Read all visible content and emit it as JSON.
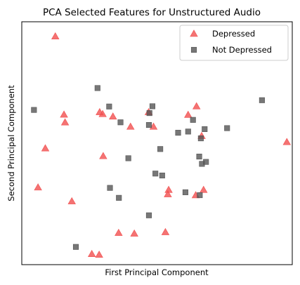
{
  "chart_data": {
    "type": "scatter",
    "title": "PCA Selected Features for Unstructured Audio",
    "xlabel": "First Principal Component",
    "ylabel": "Second Principal Component",
    "xlim": [
      0,
      100
    ],
    "ylim": [
      0,
      100
    ],
    "ticks_visible": false,
    "grid": false,
    "legend_position": "top-right",
    "series": [
      {
        "name": "Depressed",
        "marker": "triangle",
        "color": "#f15050",
        "points": [
          [
            12.4,
            94.0
          ],
          [
            15.6,
            61.8
          ],
          [
            16.0,
            58.6
          ],
          [
            8.7,
            47.9
          ],
          [
            6.0,
            31.8
          ],
          [
            18.5,
            26.1
          ],
          [
            28.8,
            62.8
          ],
          [
            29.9,
            62.0
          ],
          [
            30.1,
            44.7
          ],
          [
            33.7,
            61.0
          ],
          [
            40.2,
            56.8
          ],
          [
            35.8,
            13.1
          ],
          [
            41.6,
            12.8
          ],
          [
            25.9,
            4.4
          ],
          [
            28.6,
            4.1
          ],
          [
            46.9,
            62.8
          ],
          [
            48.7,
            56.8
          ],
          [
            53.1,
            13.4
          ],
          [
            54.3,
            30.8
          ],
          [
            54.0,
            29.0
          ],
          [
            61.5,
            61.7
          ],
          [
            64.6,
            65.2
          ],
          [
            66.5,
            53.0
          ],
          [
            64.3,
            28.6
          ],
          [
            67.2,
            30.8
          ],
          [
            98.0,
            50.5
          ]
        ]
      },
      {
        "name": "Not Depressed",
        "marker": "square",
        "color": "#555555",
        "points": [
          [
            4.5,
            63.7
          ],
          [
            28.0,
            72.7
          ],
          [
            32.3,
            65.1
          ],
          [
            36.5,
            58.6
          ],
          [
            39.4,
            43.8
          ],
          [
            32.6,
            31.6
          ],
          [
            35.9,
            27.5
          ],
          [
            20.0,
            7.3
          ],
          [
            47.0,
            57.5
          ],
          [
            47.2,
            62.4
          ],
          [
            48.3,
            65.2
          ],
          [
            49.4,
            37.5
          ],
          [
            51.2,
            47.6
          ],
          [
            51.9,
            36.7
          ],
          [
            47.0,
            20.3
          ],
          [
            57.8,
            54.3
          ],
          [
            61.5,
            54.8
          ],
          [
            63.3,
            59.6
          ],
          [
            65.6,
            44.5
          ],
          [
            66.2,
            52.0
          ],
          [
            67.6,
            55.8
          ],
          [
            68.1,
            42.3
          ],
          [
            66.6,
            41.5
          ],
          [
            60.5,
            29.8
          ],
          [
            65.8,
            28.6
          ],
          [
            75.9,
            56.2
          ],
          [
            88.8,
            67.7
          ]
        ]
      }
    ]
  }
}
